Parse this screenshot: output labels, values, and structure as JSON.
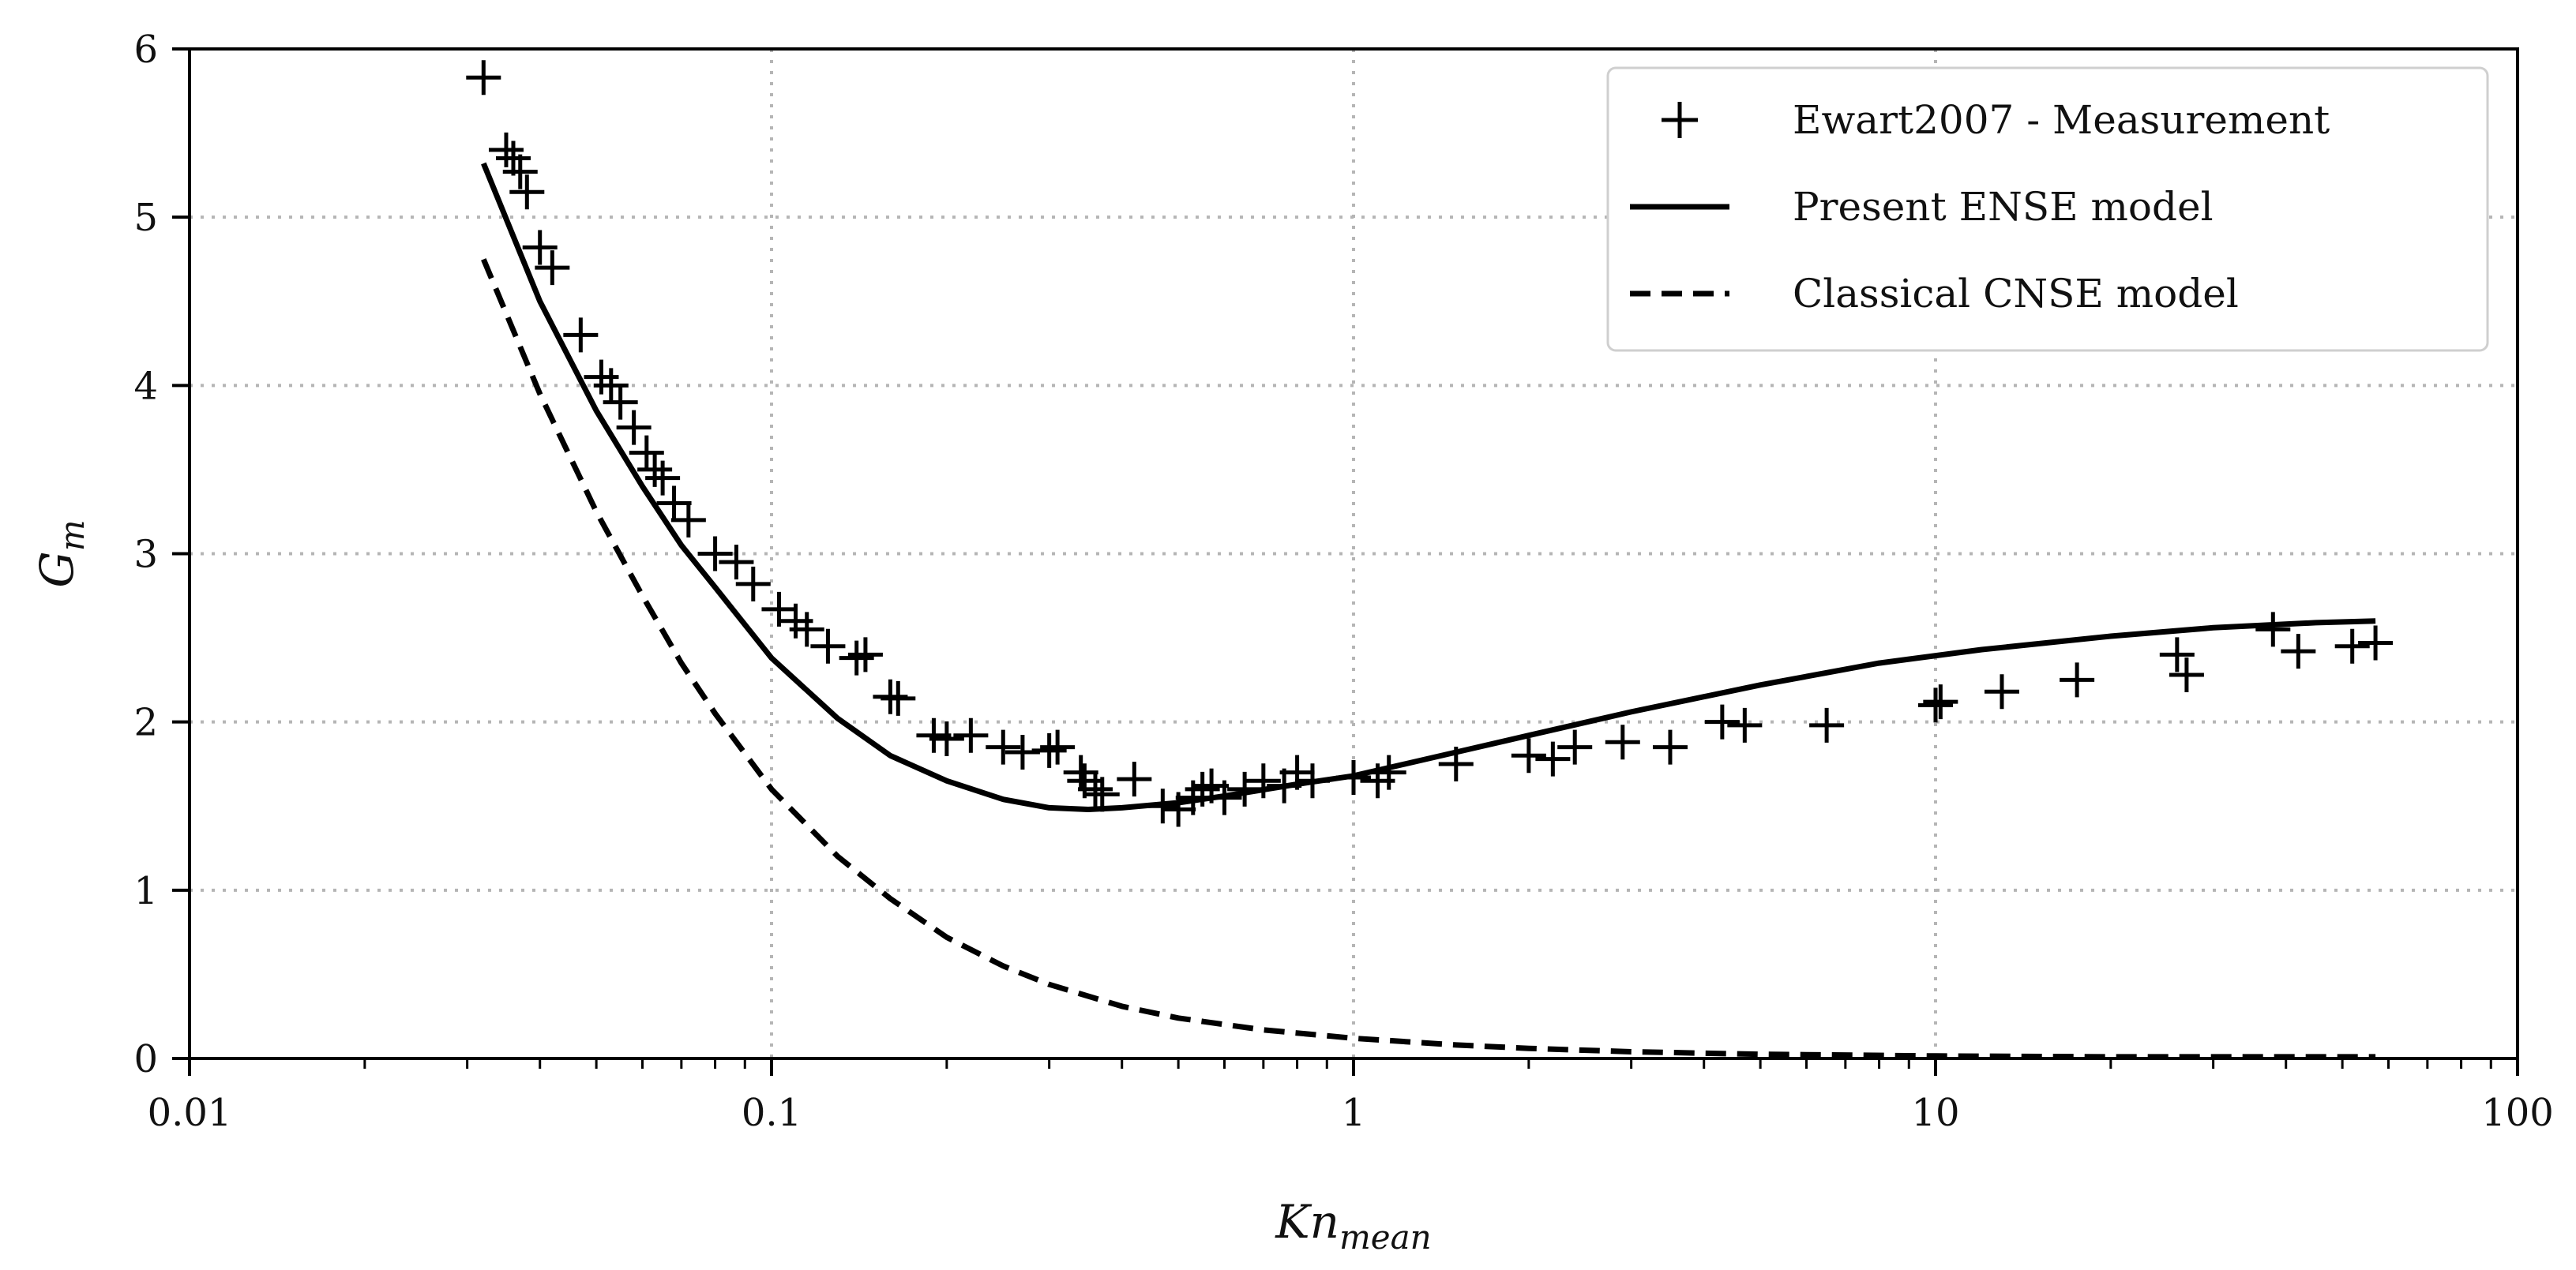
{
  "chart_data": {
    "type": "scatter+line",
    "title": "",
    "xlabel": "Kn",
    "xlabel_subscript": "mean",
    "ylabel": "G",
    "ylabel_subscript": "m",
    "x_scale": "log",
    "xlim": [
      0.01,
      100
    ],
    "ylim": [
      0,
      6
    ],
    "x_ticks": [
      0.01,
      0.1,
      1,
      10,
      100
    ],
    "x_tick_labels": [
      "0.01",
      "0.1",
      "1",
      "10",
      "100"
    ],
    "y_ticks": [
      0,
      1,
      2,
      3,
      4,
      5,
      6
    ],
    "y_tick_labels": [
      "0",
      "1",
      "2",
      "3",
      "4",
      "5",
      "6"
    ],
    "grid": true,
    "legend_position": "top-right",
    "legend": [
      {
        "label": "Ewart2007 - Measurement",
        "style": "plus-marker"
      },
      {
        "label": "Present ENSE model",
        "style": "solid"
      },
      {
        "label": "Classical CNSE model",
        "style": "dashed"
      }
    ],
    "series": [
      {
        "name": "Ewart2007 - Measurement",
        "kind": "scatter",
        "marker": "+",
        "x": [
          0.032,
          0.035,
          0.036,
          0.037,
          0.038,
          0.04,
          0.042,
          0.047,
          0.051,
          0.053,
          0.055,
          0.058,
          0.061,
          0.063,
          0.065,
          0.068,
          0.072,
          0.08,
          0.087,
          0.093,
          0.103,
          0.11,
          0.115,
          0.125,
          0.14,
          0.145,
          0.16,
          0.165,
          0.19,
          0.2,
          0.22,
          0.25,
          0.27,
          0.3,
          0.31,
          0.34,
          0.345,
          0.36,
          0.37,
          0.42,
          0.47,
          0.5,
          0.53,
          0.55,
          0.57,
          0.6,
          0.65,
          0.7,
          0.76,
          0.8,
          0.85,
          1.0,
          1.1,
          1.15,
          1.5,
          2.0,
          2.2,
          2.4,
          2.9,
          3.5,
          4.3,
          4.7,
          6.5,
          10,
          10.2,
          13,
          17.5,
          26,
          27,
          38,
          42,
          52,
          57
        ],
        "y": [
          5.83,
          5.4,
          5.35,
          5.27,
          5.15,
          4.82,
          4.7,
          4.3,
          4.05,
          4.0,
          3.9,
          3.75,
          3.6,
          3.5,
          3.45,
          3.3,
          3.2,
          3.0,
          2.95,
          2.82,
          2.67,
          2.6,
          2.55,
          2.45,
          2.38,
          2.4,
          2.15,
          2.14,
          1.92,
          1.9,
          1.92,
          1.85,
          1.82,
          1.83,
          1.85,
          1.7,
          1.65,
          1.6,
          1.57,
          1.66,
          1.5,
          1.48,
          1.55,
          1.6,
          1.62,
          1.55,
          1.6,
          1.65,
          1.62,
          1.7,
          1.65,
          1.67,
          1.65,
          1.7,
          1.75,
          1.8,
          1.78,
          1.85,
          1.88,
          1.85,
          2.0,
          1.98,
          1.98,
          2.1,
          2.12,
          2.18,
          2.25,
          2.4,
          2.28,
          2.55,
          2.42,
          2.45,
          2.47
        ]
      },
      {
        "name": "Present ENSE model",
        "kind": "line",
        "dash": "solid",
        "x": [
          0.032,
          0.04,
          0.05,
          0.06,
          0.07,
          0.08,
          0.1,
          0.13,
          0.16,
          0.2,
          0.25,
          0.3,
          0.35,
          0.4,
          0.5,
          0.6,
          0.8,
          1.0,
          1.5,
          2,
          3,
          5,
          8,
          12,
          20,
          30,
          45,
          57
        ],
        "y": [
          5.32,
          4.5,
          3.85,
          3.4,
          3.05,
          2.8,
          2.38,
          2.02,
          1.8,
          1.65,
          1.54,
          1.49,
          1.48,
          1.49,
          1.52,
          1.56,
          1.63,
          1.68,
          1.82,
          1.92,
          2.06,
          2.22,
          2.35,
          2.43,
          2.51,
          2.56,
          2.59,
          2.6
        ]
      },
      {
        "name": "Classical CNSE model",
        "kind": "line",
        "dash": "dashed",
        "x": [
          0.032,
          0.04,
          0.05,
          0.06,
          0.07,
          0.08,
          0.1,
          0.13,
          0.16,
          0.2,
          0.25,
          0.3,
          0.4,
          0.5,
          0.7,
          1.0,
          1.5,
          2,
          3,
          5,
          10,
          20,
          57
        ],
        "y": [
          4.75,
          3.95,
          3.25,
          2.75,
          2.35,
          2.05,
          1.6,
          1.2,
          0.95,
          0.72,
          0.55,
          0.44,
          0.31,
          0.24,
          0.17,
          0.12,
          0.08,
          0.06,
          0.04,
          0.025,
          0.015,
          0.01,
          0.01
        ]
      }
    ]
  }
}
